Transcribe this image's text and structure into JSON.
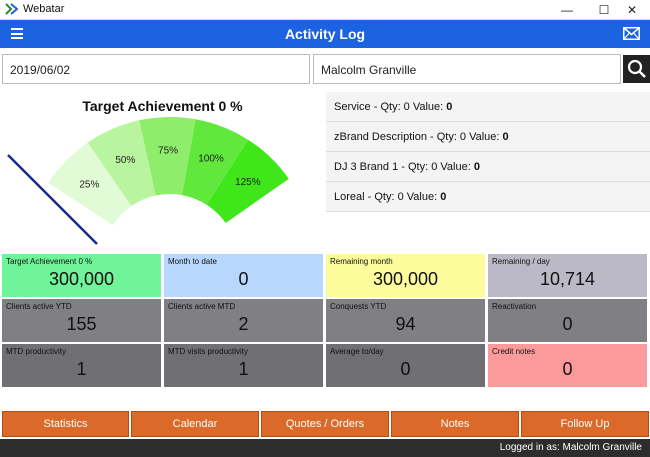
{
  "window": {
    "app_title": "Webatar",
    "minimize": "—",
    "maximize": "☐",
    "close": "✕"
  },
  "header": {
    "title": "Activity Log",
    "menu_icon": "hamburger-icon",
    "mail_icon": "mail-icon"
  },
  "filters": {
    "date": "2019/06/02",
    "rep_name": "Malcolm Granville"
  },
  "gauge": {
    "title": "Target Achievement 0 %",
    "segments": [
      "25%",
      "50%",
      "75%",
      "100%",
      "125%"
    ],
    "needle_fraction": 0,
    "colors": [
      "#e2fbd7",
      "#b9f49f",
      "#8eed6a",
      "#60e83d",
      "#3fe61a"
    ]
  },
  "products": [
    {
      "text": "Service - Qty: 0 Value: ",
      "value": "0"
    },
    {
      "text": "zBrand Description - Qty: 0 Value: ",
      "value": "0"
    },
    {
      "text": "DJ 3 Brand 1 - Qty: 0 Value: ",
      "value": "0"
    },
    {
      "text": "Loreal - Qty: 0 Value: ",
      "value": "0"
    }
  ],
  "tiles": {
    "target": {
      "label": "Target Achievement 0 %",
      "value": "300,000",
      "color": "#6ff49a"
    },
    "mtd": {
      "label": "Month to date",
      "value": "0",
      "color": "#b8d7ff"
    },
    "remaining_month": {
      "label": "Remaining month",
      "value": "300,000",
      "color": "#fcfc9c"
    },
    "remaining_day": {
      "label": "Remaining / day",
      "value": "10,714",
      "color": "#bcb9c6"
    },
    "clients_ytd": {
      "label": "Clients active YTD",
      "value": "155",
      "color": "#7f7f84"
    },
    "clients_mtd": {
      "label": "Clients active MTD",
      "value": "2",
      "color": "#7f7f84"
    },
    "conquests_ytd": {
      "label": "Conquests YTD",
      "value": "94",
      "color": "#7f7f84"
    },
    "reactivation": {
      "label": "Reactivation",
      "value": "0",
      "color": "#7f7f84"
    },
    "mtd_productivity": {
      "label": "MTD productivity",
      "value": "1",
      "color": "#6f6f74"
    },
    "mtd_visits": {
      "label": "MTD visits productivity",
      "value": "1",
      "color": "#6f6f74"
    },
    "avg_day": {
      "label": "Average to/day",
      "value": "0",
      "color": "#6f6f74"
    },
    "credit_notes": {
      "label": "Credit notes",
      "value": "0",
      "color": "#fa9a9a"
    }
  },
  "buttons": {
    "statistics": "Statistics",
    "calendar": "Calendar",
    "quotes": "Quotes / Orders",
    "notes": "Notes",
    "followup": "Follow Up"
  },
  "status": {
    "logged_in": "Logged in as: Malcolm Granville"
  }
}
